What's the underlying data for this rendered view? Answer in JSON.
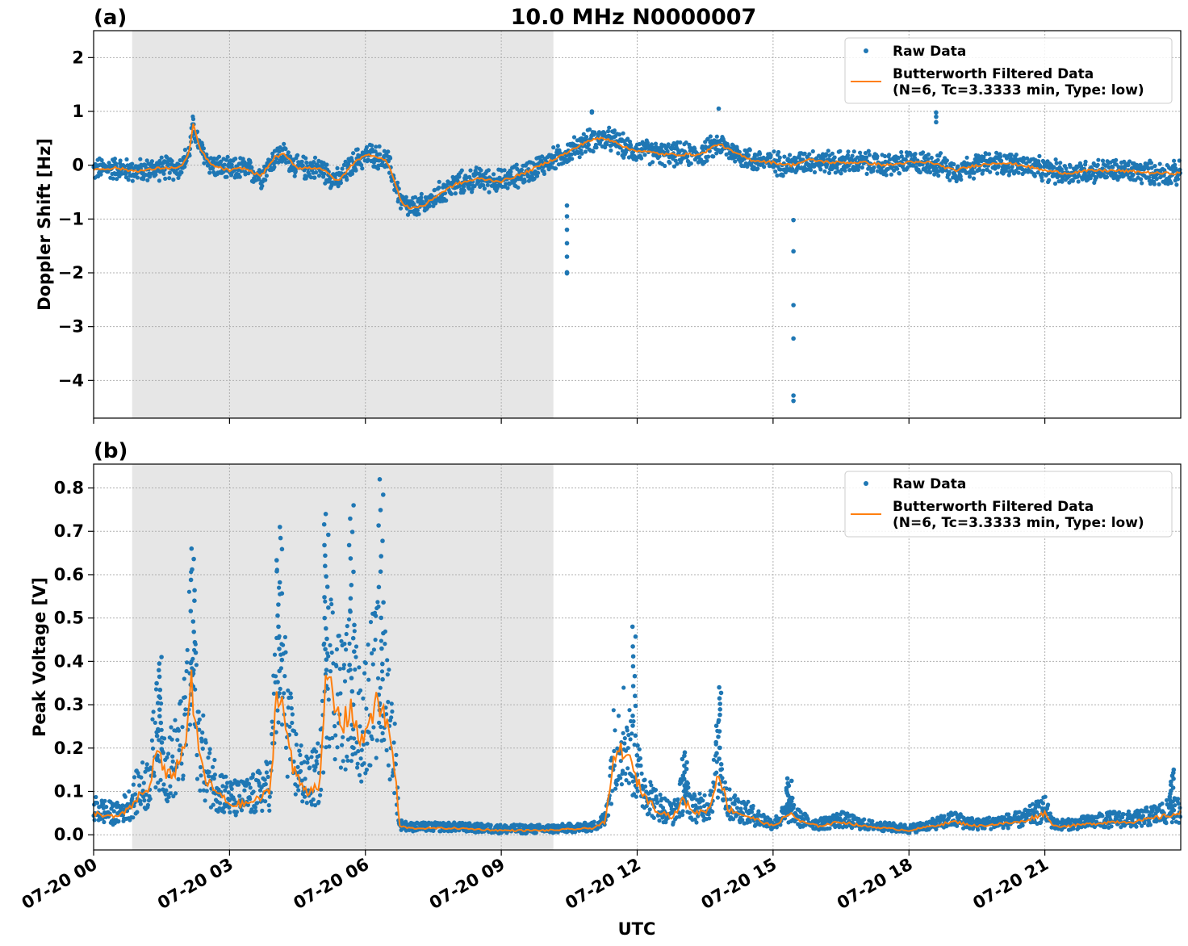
{
  "figure": {
    "title": "10.0 MHz N0000007",
    "xlabel": "UTC",
    "colors": {
      "raw": "#1f77b4",
      "filtered": "#ff7f0e",
      "shade": "#e6e6e6",
      "grid": "#b0b0b0"
    }
  },
  "chart_data": [
    {
      "panel_label": "(a)",
      "type": "scatter",
      "ylabel": "Doppler Shift [Hz]",
      "xlim": [
        "07-20 00:00",
        "07-20 24:00"
      ],
      "ylim": [
        -4.7,
        2.5
      ],
      "yticks": [
        2,
        1,
        0,
        -1,
        -2,
        -3,
        -4
      ],
      "ytick_labels": [
        "2",
        "1",
        "0",
        "−1",
        "−2",
        "−3",
        "−4"
      ],
      "x_tick_hours": [
        0,
        3,
        6,
        9,
        12,
        15,
        18,
        21
      ],
      "x_tick_labels": [
        "07-20 00",
        "07-20 03",
        "07-20 06",
        "07-20 09",
        "07-20 12",
        "07-20 15",
        "07-20 18",
        "07-20 21"
      ],
      "shaded_region_hours": [
        0.85,
        10.15
      ],
      "grid": true,
      "legend": {
        "position": "top-right",
        "entries": [
          "Raw Data",
          "Butterworth Filtered Data\n(N=6, Tc=3.3333 min, Type: low)"
        ]
      },
      "series": [
        {
          "name": "Butterworth Filtered Data\n(N=6, Tc=3.3333 min, Type: low)",
          "kind": "line",
          "x": [
            0,
            0.5,
            0.8,
            1.1,
            1.5,
            1.9,
            2.1,
            2.2,
            2.35,
            2.6,
            3.0,
            3.3,
            3.7,
            4.0,
            4.2,
            4.5,
            5.0,
            5.4,
            5.8,
            6.1,
            6.3,
            6.5,
            6.8,
            7.0,
            7.3,
            7.6,
            8.0,
            8.5,
            9.0,
            9.5,
            10.0,
            10.5,
            10.9,
            11.2,
            11.5,
            11.8,
            12.2,
            12.6,
            13.0,
            13.4,
            13.8,
            14.1,
            14.5,
            15.0,
            15.4,
            15.8,
            16.3,
            17.0,
            17.5,
            18.0,
            18.5,
            19.0,
            19.5,
            20.0,
            20.5,
            21.0,
            21.5,
            22.0,
            22.5,
            23.0,
            23.5,
            24.0
          ],
          "y": [
            -0.08,
            -0.05,
            -0.1,
            -0.1,
            -0.05,
            -0.05,
            0.2,
            0.75,
            0.3,
            0.0,
            -0.1,
            -0.05,
            -0.2,
            0.15,
            0.2,
            -0.05,
            -0.05,
            -0.3,
            0.1,
            0.2,
            0.15,
            0.05,
            -0.7,
            -0.8,
            -0.75,
            -0.55,
            -0.35,
            -0.25,
            -0.3,
            -0.15,
            0.05,
            0.25,
            0.45,
            0.5,
            0.45,
            0.3,
            0.25,
            0.2,
            0.2,
            0.2,
            0.4,
            0.25,
            0.1,
            0.05,
            0.0,
            0.1,
            0.05,
            0.05,
            0.0,
            0.05,
            0.05,
            -0.1,
            0.0,
            0.05,
            0.0,
            -0.1,
            -0.15,
            -0.1,
            -0.1,
            -0.12,
            -0.15,
            -0.15
          ]
        },
        {
          "name": "Raw Data",
          "kind": "scatter",
          "spread": 0.16,
          "outliers": [
            {
              "x": 10.45,
              "y": [
                -0.75,
                -0.95,
                -1.2,
                -1.45,
                -1.7,
                -1.99,
                -2.01
              ]
            },
            {
              "x": 15.45,
              "y": [
                -1.02,
                -1.6,
                -2.6,
                -3.22,
                -4.28,
                -4.38
              ]
            },
            {
              "x": 18.6,
              "y": [
                0.8,
                0.9,
                0.98
              ]
            },
            {
              "x": 13.8,
              "y": [
                1.05
              ]
            },
            {
              "x": 11.0,
              "y": [
                0.98,
                1.0
              ]
            }
          ]
        }
      ]
    },
    {
      "panel_label": "(b)",
      "type": "scatter",
      "ylabel": "Peak Voltage [V]",
      "xlim": [
        "07-20 00:00",
        "07-20 24:00"
      ],
      "ylim": [
        -0.035,
        0.855
      ],
      "yticks": [
        0.8,
        0.7,
        0.6,
        0.5,
        0.4,
        0.3,
        0.2,
        0.1,
        0.0
      ],
      "ytick_labels": [
        "0.8",
        "0.7",
        "0.6",
        "0.5",
        "0.4",
        "0.3",
        "0.2",
        "0.1",
        "0.0"
      ],
      "x_tick_hours": [
        0,
        3,
        6,
        9,
        12,
        15,
        18,
        21
      ],
      "x_tick_labels": [
        "07-20 00",
        "07-20 03",
        "07-20 06",
        "07-20 09",
        "07-20 12",
        "07-20 15",
        "07-20 18",
        "07-20 21"
      ],
      "shaded_region_hours": [
        0.85,
        10.15
      ],
      "grid": true,
      "legend": {
        "position": "top-right",
        "entries": [
          "Raw Data",
          "Butterworth Filtered Data\n(N=6, Tc=3.3333 min, Type: low)"
        ]
      },
      "series": [
        {
          "name": "Butterworth Filtered Data\n(N=6, Tc=3.3333 min, Type: low)",
          "kind": "line",
          "x": [
            0,
            0.5,
            0.8,
            1.0,
            1.2,
            1.4,
            1.6,
            1.8,
            2.0,
            2.15,
            2.3,
            2.5,
            2.8,
            3.0,
            3.3,
            3.6,
            3.9,
            4.05,
            4.2,
            4.4,
            4.7,
            5.0,
            5.15,
            5.3,
            5.5,
            5.7,
            5.9,
            6.1,
            6.3,
            6.5,
            6.65,
            6.75,
            7.0,
            8.0,
            9.0,
            10.0,
            11.0,
            11.3,
            11.5,
            11.7,
            11.9,
            12.1,
            12.4,
            12.8,
            13.0,
            13.3,
            13.6,
            13.8,
            14.0,
            14.5,
            15.0,
            15.4,
            15.6,
            16.0,
            16.5,
            17.0,
            17.5,
            18.0,
            18.5,
            19.0,
            19.5,
            20.0,
            20.5,
            21.0,
            21.2,
            21.5,
            22.0,
            22.5,
            23.0,
            23.5,
            24.0
          ],
          "y": [
            0.05,
            0.04,
            0.06,
            0.09,
            0.1,
            0.2,
            0.13,
            0.15,
            0.2,
            0.35,
            0.2,
            0.12,
            0.09,
            0.07,
            0.07,
            0.08,
            0.1,
            0.35,
            0.28,
            0.15,
            0.1,
            0.12,
            0.38,
            0.3,
            0.25,
            0.3,
            0.2,
            0.28,
            0.3,
            0.25,
            0.15,
            0.02,
            0.015,
            0.015,
            0.01,
            0.01,
            0.015,
            0.03,
            0.18,
            0.2,
            0.15,
            0.1,
            0.06,
            0.04,
            0.08,
            0.05,
            0.06,
            0.15,
            0.06,
            0.04,
            0.02,
            0.05,
            0.03,
            0.02,
            0.03,
            0.02,
            0.015,
            0.01,
            0.02,
            0.03,
            0.02,
            0.025,
            0.03,
            0.05,
            0.02,
            0.02,
            0.025,
            0.03,
            0.03,
            0.04,
            0.05
          ]
        },
        {
          "name": "Raw Data",
          "kind": "scatter",
          "band": "envelope",
          "spikes": [
            {
              "x": 2.2,
              "y": 0.66
            },
            {
              "x": 4.1,
              "y": 0.71
            },
            {
              "x": 5.15,
              "y": 0.74
            },
            {
              "x": 5.7,
              "y": 0.76
            },
            {
              "x": 6.35,
              "y": 0.82
            },
            {
              "x": 1.45,
              "y": 0.41
            },
            {
              "x": 11.95,
              "y": 0.48
            },
            {
              "x": 13.8,
              "y": 0.34
            },
            {
              "x": 13.05,
              "y": 0.19
            },
            {
              "x": 15.35,
              "y": 0.13
            },
            {
              "x": 23.8,
              "y": 0.15
            }
          ]
        }
      ]
    }
  ]
}
